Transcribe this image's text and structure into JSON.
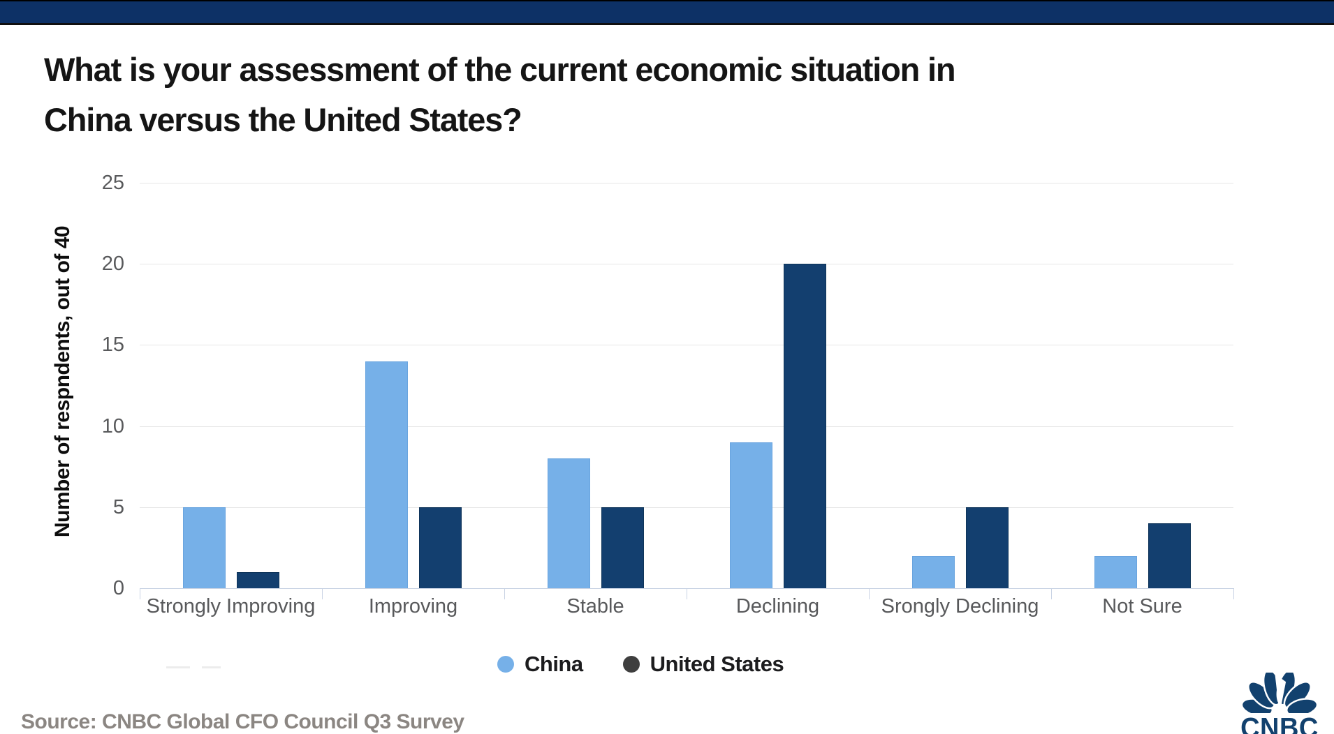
{
  "header": {
    "title_lines": [
      "What is your assessment of the current economic situation in",
      "China versus the United States?"
    ]
  },
  "chart_data": {
    "type": "bar",
    "title": "What is your assessment of the current economic situation in China versus the United States?",
    "ylabel": "Number of respndents, out of 40",
    "xlabel": "",
    "categories": [
      "Strongly Improving",
      "Improving",
      "Stable",
      "Declining",
      "Srongly Declining",
      "Not Sure"
    ],
    "series": [
      {
        "name": "China",
        "color": "#76b0e8",
        "border": "#69a4df",
        "legend_color": "#76b0e8",
        "values": [
          5,
          14,
          8,
          9,
          2,
          2
        ]
      },
      {
        "name": "United States",
        "color": "#133f6f",
        "border": "#0e3459",
        "legend_color": "#3f3f3f",
        "values": [
          1,
          5,
          5,
          20,
          5,
          4
        ]
      }
    ],
    "ylim": [
      0,
      25
    ],
    "yticks": [
      0,
      5,
      10,
      15,
      20,
      25
    ],
    "grid": "horizontal",
    "legend_position": "bottom"
  },
  "footer": {
    "source": "Source: CNBC Global CFO Council Q3 Survey",
    "logo_text": "CNBC"
  },
  "colors": {
    "banner": "#0d3166",
    "grid": "#e7e7e7",
    "axis": "#c9d3e4",
    "tick_text": "#58595b",
    "logo_navy": "#12416e"
  }
}
